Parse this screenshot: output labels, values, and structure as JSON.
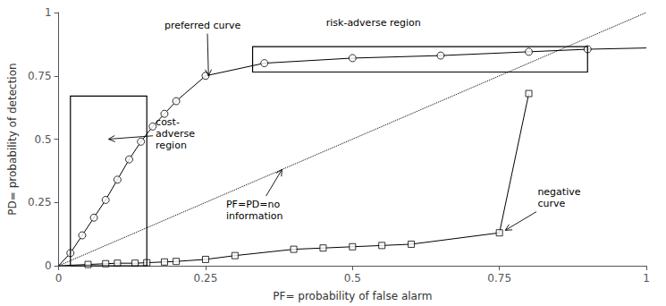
{
  "chart_data": {
    "type": "line",
    "xlabel": "PF= probability of false alarm",
    "ylabel": "PD= probability of detection",
    "xlim": [
      0,
      1
    ],
    "ylim": [
      0,
      1
    ],
    "xticks": [
      0,
      0.25,
      0.5,
      0.75,
      1
    ],
    "yticks": [
      0,
      0.25,
      0.5,
      0.75,
      1
    ],
    "grid": false,
    "series": [
      {
        "type": "line",
        "line_style": "dotted",
        "marker": "none",
        "color": "#000000",
        "x": [
          0,
          1
        ],
        "values": [
          0,
          1
        ]
      },
      {
        "type": "line",
        "line_style": "solid",
        "marker": "none",
        "color": "#000000",
        "x": [
          0.0,
          0.02,
          0.04,
          0.06,
          0.08,
          0.1,
          0.12,
          0.14,
          0.16,
          0.18,
          0.2,
          0.25,
          0.35,
          0.5,
          0.65,
          0.8,
          0.9,
          1.0
        ],
        "values": [
          0.0,
          0.05,
          0.12,
          0.19,
          0.26,
          0.34,
          0.42,
          0.49,
          0.55,
          0.6,
          0.65,
          0.75,
          0.8,
          0.82,
          0.83,
          0.845,
          0.855,
          0.86
        ]
      },
      {
        "type": "scatter",
        "marker": "circle",
        "color": "#000000",
        "x": [
          0.02,
          0.04,
          0.06,
          0.08,
          0.1,
          0.12,
          0.14,
          0.16,
          0.18,
          0.2,
          0.25,
          0.35,
          0.5,
          0.65,
          0.8,
          0.9
        ],
        "values": [
          0.05,
          0.12,
          0.19,
          0.26,
          0.34,
          0.42,
          0.49,
          0.55,
          0.6,
          0.65,
          0.75,
          0.8,
          0.82,
          0.83,
          0.845,
          0.855
        ]
      },
      {
        "type": "line",
        "line_style": "solid",
        "marker": "none",
        "color": "#000000",
        "x": [
          0.0,
          0.05,
          0.08,
          0.1,
          0.13,
          0.15,
          0.18,
          0.2,
          0.25,
          0.3,
          0.4,
          0.45,
          0.5,
          0.55,
          0.6,
          0.75,
          0.8
        ],
        "values": [
          0.0,
          0.005,
          0.008,
          0.01,
          0.01,
          0.012,
          0.015,
          0.017,
          0.025,
          0.04,
          0.065,
          0.07,
          0.075,
          0.08,
          0.085,
          0.13,
          0.68
        ]
      },
      {
        "type": "scatter",
        "marker": "square",
        "color": "#000000",
        "x": [
          0.05,
          0.08,
          0.1,
          0.13,
          0.15,
          0.18,
          0.2,
          0.25,
          0.3,
          0.4,
          0.45,
          0.5,
          0.55,
          0.6,
          0.75,
          0.8
        ],
        "values": [
          0.005,
          0.008,
          0.01,
          0.01,
          0.012,
          0.015,
          0.017,
          0.025,
          0.04,
          0.065,
          0.07,
          0.075,
          0.08,
          0.085,
          0.13,
          0.68
        ]
      }
    ],
    "regions": [
      {
        "x": 0.02,
        "y": 0.0,
        "width": 0.13,
        "height": 0.67
      },
      {
        "x": 0.33,
        "y": 0.765,
        "width": 0.57,
        "height": 0.1
      }
    ],
    "annotations": [
      {
        "text": "preferred curve",
        "xy": [
          0.255,
          0.75
        ],
        "xytext": [
          0.18,
          0.95
        ]
      },
      {
        "text": "cost-\nadverse\nregion",
        "xy": [
          0.085,
          0.5
        ],
        "xytext": [
          0.165,
          0.52
        ]
      },
      {
        "text": "risk-adverse region",
        "xytext": [
          0.455,
          0.935
        ]
      },
      {
        "text": "PF=PD=no\ninformation",
        "xy": [
          0.38,
          0.38
        ],
        "xytext": [
          0.285,
          0.265
        ]
      },
      {
        "text": "negative\ncurve",
        "xy": [
          0.76,
          0.14
        ],
        "xytext": [
          0.815,
          0.27
        ]
      }
    ]
  }
}
